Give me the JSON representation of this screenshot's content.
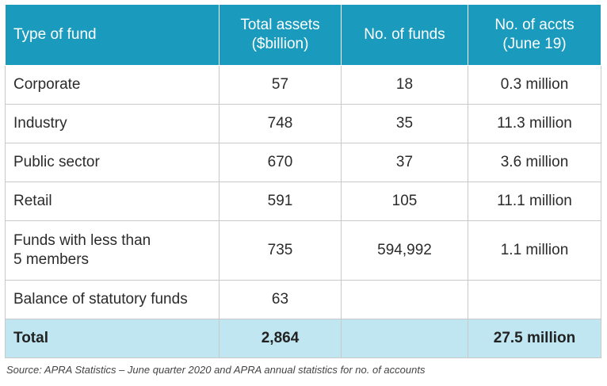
{
  "table": {
    "headers": [
      [
        "Type of fund"
      ],
      [
        "Total assets",
        "($billion)"
      ],
      [
        "No. of funds"
      ],
      [
        "No. of accts",
        "(June 19)"
      ]
    ],
    "rows": [
      {
        "type": "Corporate",
        "assets": "57",
        "funds": "18",
        "accounts": "0.3 million"
      },
      {
        "type": "Industry",
        "assets": "748",
        "funds": "35",
        "accounts": "11.3 million"
      },
      {
        "type": "Public sector",
        "assets": "670",
        "funds": "37",
        "accounts": "3.6 million"
      },
      {
        "type": "Retail",
        "assets": "591",
        "funds": "105",
        "accounts": "11.1 million"
      },
      {
        "type_lines": [
          "Funds with less than",
          "5 members"
        ],
        "assets": "735",
        "funds": "594,992",
        "accounts": "1.1 million"
      },
      {
        "type": "Balance of statutory funds",
        "assets": "63",
        "funds": "",
        "accounts": ""
      }
    ],
    "total": {
      "type": "Total",
      "assets": "2,864",
      "funds": "",
      "accounts": "27.5 million"
    }
  },
  "source": "Source: APRA Statistics –  June quarter 2020 and APRA annual statistics for no. of accounts",
  "colors": {
    "header_bg": "#1a9bbe",
    "total_bg": "#bfe6f1",
    "border": "#c9c9c9"
  }
}
